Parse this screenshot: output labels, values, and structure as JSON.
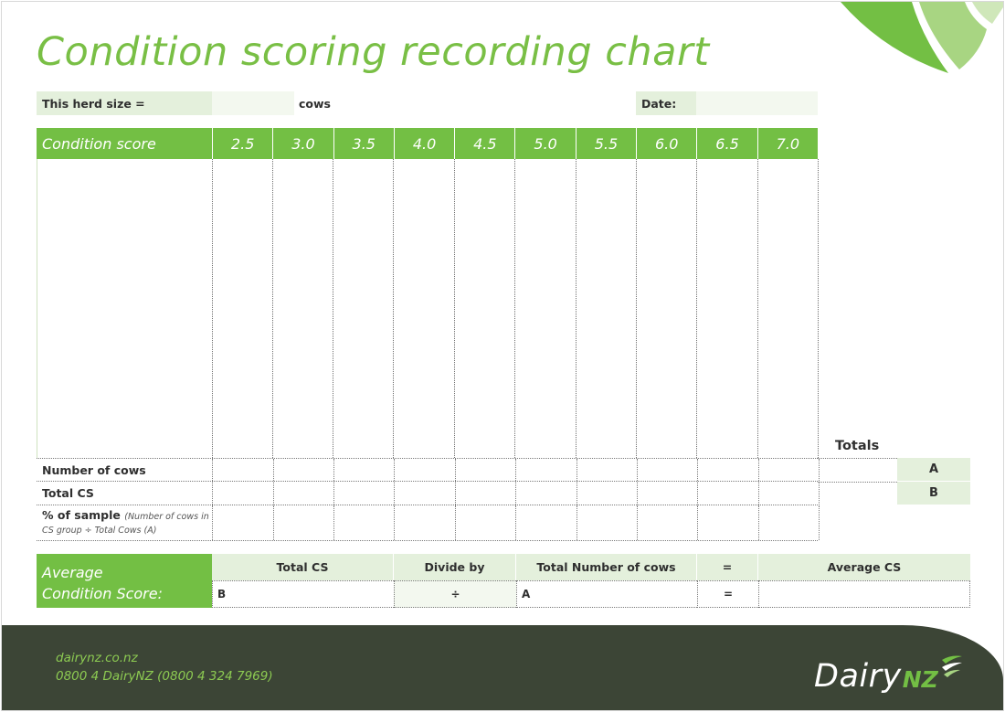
{
  "title": "Condition scoring recording chart",
  "herd": {
    "label": "This herd size =",
    "unit": "cows",
    "date_label": "Date:"
  },
  "condition_score": {
    "header_label": "Condition score",
    "scores": [
      "2.5",
      "3.0",
      "3.5",
      "4.0",
      "4.5",
      "5.0",
      "5.5",
      "6.0",
      "6.5",
      "7.0"
    ]
  },
  "summary": {
    "totals_label": "Totals",
    "rows": [
      {
        "label": "Number of cows",
        "total_key": "A"
      },
      {
        "label": "Total CS",
        "total_key": "B"
      },
      {
        "label": "% of sample",
        "note_line1": "(Number of cows in",
        "note_line2": "CS group ÷ Total Cows (A)"
      }
    ]
  },
  "average": {
    "label_line1": "Average",
    "label_line2": "Condition Score:",
    "headers": {
      "total_cs": "Total CS",
      "divide_by": "Divide by",
      "total_cows": "Total Number of cows",
      "equals": "=",
      "average_cs": "Average CS"
    },
    "values": {
      "total_cs": "B",
      "divide_by": "÷",
      "total_cows": "A",
      "equals": "=",
      "average_cs": ""
    }
  },
  "footer": {
    "website": "dairynz.co.nz",
    "phone": "0800 4 DairyNZ (0800 4 324 7969)",
    "logo_main": "Dairy",
    "logo_accent": "NZ"
  },
  "colors": {
    "brand_green": "#73bf44",
    "pale_green": "#e4f0dc",
    "footer_bg": "#3c4536",
    "footer_text": "#8dcb52"
  }
}
